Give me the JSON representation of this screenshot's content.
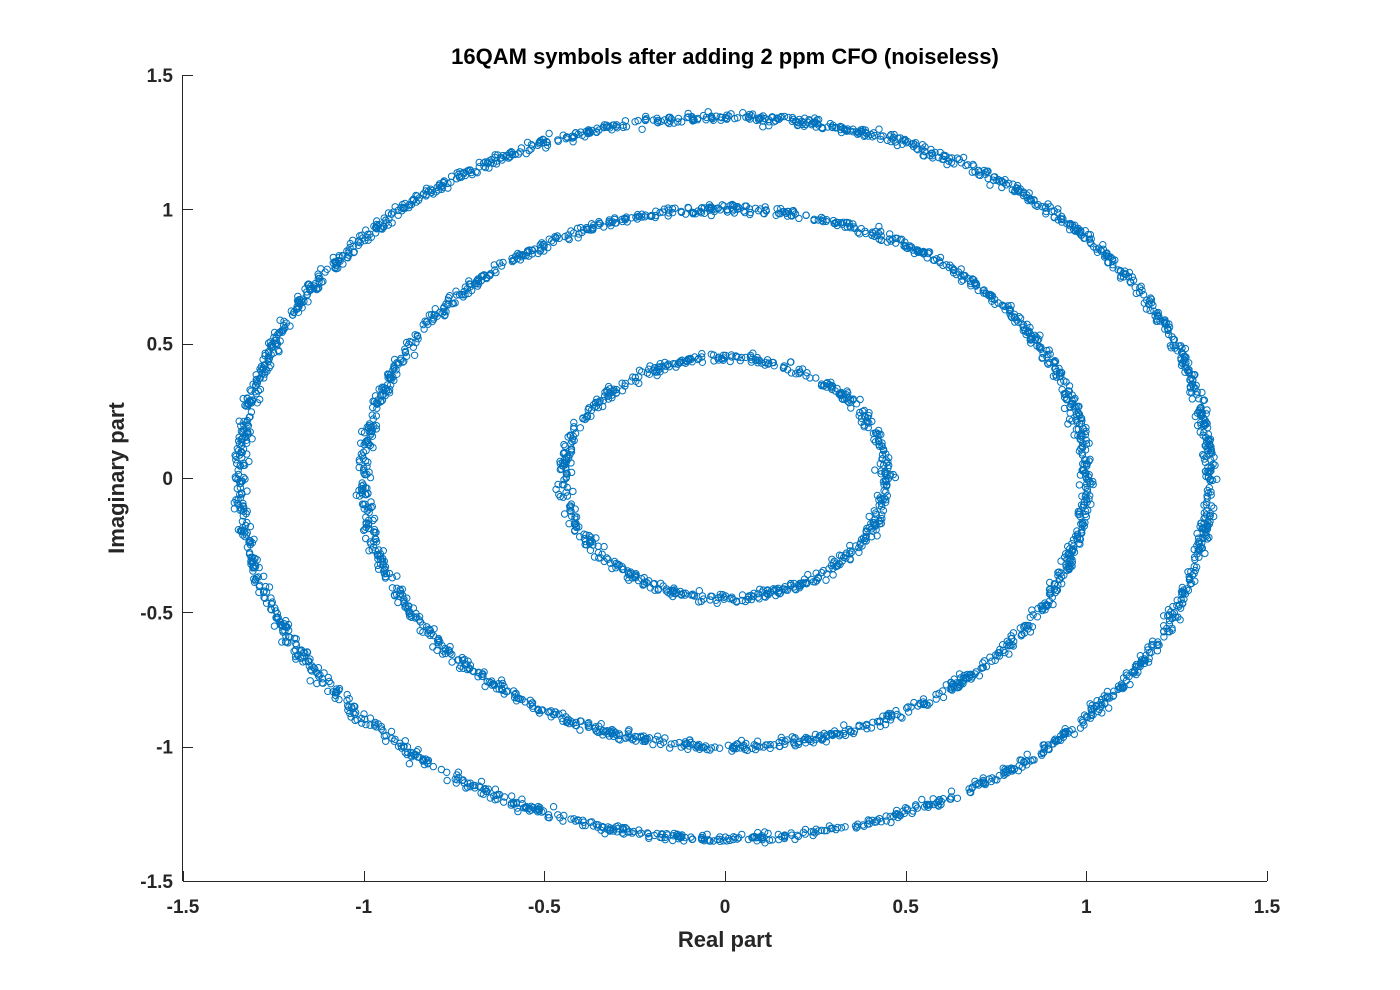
{
  "chart_data": {
    "type": "scatter",
    "title": "16QAM symbols after adding 2 ppm CFO (noiseless)",
    "xlabel": "Real part",
    "ylabel": "Imaginary part",
    "xlim": [
      -1.5,
      1.5
    ],
    "ylim": [
      -1.5,
      1.5
    ],
    "xticks": [
      -1.5,
      -1,
      -0.5,
      0,
      0.5,
      1,
      1.5
    ],
    "yticks": [
      -1.5,
      -1,
      -0.5,
      0,
      0.5,
      1,
      1.5
    ],
    "xtick_labels": [
      "-1.5",
      "-1",
      "-0.5",
      "0",
      "0.5",
      "1",
      "1.5"
    ],
    "ytick_labels": [
      "-1.5",
      "-1",
      "-0.5",
      "0",
      "0.5",
      "1",
      "1.5"
    ],
    "grid": false,
    "legend": false,
    "marker": "circle",
    "color": "#0072BD",
    "series": [
      {
        "center": [
          0.0,
          0.0
        ],
        "radius": 0.447,
        "description_points": "ring of symbols with magnitude ~0.447"
      },
      {
        "center": [
          0.0,
          0.0
        ],
        "radius": 1.0,
        "description_points": "ring of symbols with magnitude ~1.0"
      },
      {
        "center": [
          0.0,
          0.0
        ],
        "radius": 1.342,
        "description_points": "ring of symbols with magnitude ~1.342"
      }
    ]
  }
}
